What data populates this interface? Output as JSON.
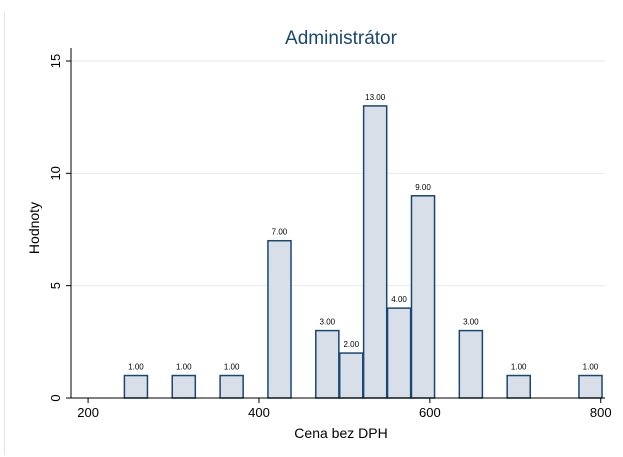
{
  "top_strip": {
    "text": ""
  },
  "chart_data": {
    "type": "bar",
    "title": "Administrátor",
    "xlabel": "Cena bez DPH",
    "ylabel": "Hodnoty",
    "xlim": [
      180,
      805
    ],
    "ylim": [
      0,
      15.4
    ],
    "xticks": [
      200,
      400,
      600,
      800
    ],
    "yticks": [
      0,
      5,
      10,
      15
    ],
    "grid": true,
    "bar_width": 27,
    "colors": {
      "bar_fill": "#d9dfe8",
      "bar_stroke": "#1a476f",
      "title": "#1a476f",
      "grid": "#eaeaea",
      "axis": "#000000"
    },
    "bars": [
      {
        "x": 256,
        "value": 1,
        "label": "1.00"
      },
      {
        "x": 312,
        "value": 1,
        "label": "1.00"
      },
      {
        "x": 368,
        "value": 1,
        "label": "1.00"
      },
      {
        "x": 424,
        "value": 7,
        "label": "7.00"
      },
      {
        "x": 480,
        "value": 3,
        "label": "3.00"
      },
      {
        "x": 508,
        "value": 2,
        "label": "2.00"
      },
      {
        "x": 536,
        "value": 13,
        "label": "13.00"
      },
      {
        "x": 564,
        "value": 4,
        "label": "4.00"
      },
      {
        "x": 592,
        "value": 9,
        "label": "9.00"
      },
      {
        "x": 648,
        "value": 3,
        "label": "3.00"
      },
      {
        "x": 704,
        "value": 1,
        "label": "1.00"
      },
      {
        "x": 788,
        "value": 1,
        "label": "1.00"
      }
    ]
  }
}
